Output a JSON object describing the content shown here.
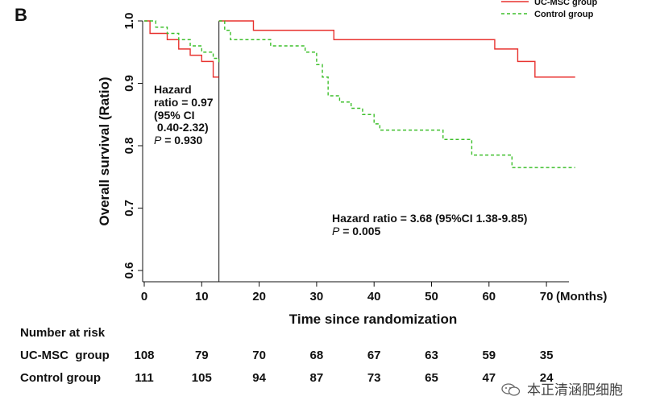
{
  "panel_label": "B",
  "chart_data": {
    "type": "line",
    "title": "",
    "xlabel": "Time since randomization",
    "ylabel": "Overall survival (Ratio)",
    "x_unit": "(Months)",
    "xlim": [
      0,
      75
    ],
    "ylim": [
      0.58,
      1.0
    ],
    "x_ticks": [
      0,
      10,
      20,
      30,
      40,
      50,
      60,
      70
    ],
    "x_tick_labels": [
      "0",
      "10",
      "20",
      "30",
      "40",
      "50",
      "60",
      "70"
    ],
    "y_ticks": [
      0.6,
      0.7,
      0.8,
      0.9,
      1.0
    ],
    "y_tick_labels": [
      "0.6",
      "0.7",
      "0.8",
      "0.9",
      "1.0"
    ],
    "cutoff_month": 13,
    "series": [
      {
        "name": "UC-MSC group",
        "color": "#e8322f",
        "style": "solid",
        "early": [
          [
            0,
            1.0
          ],
          [
            1,
            0.98
          ],
          [
            4,
            0.97
          ],
          [
            6,
            0.955
          ],
          [
            8,
            0.945
          ],
          [
            10,
            0.935
          ],
          [
            12,
            0.91
          ],
          [
            13,
            0.91
          ]
        ],
        "late": [
          [
            13,
            1.0
          ],
          [
            19,
            1.0
          ],
          [
            19,
            0.985
          ],
          [
            33,
            0.985
          ],
          [
            33,
            0.97
          ],
          [
            61,
            0.97
          ],
          [
            61,
            0.955
          ],
          [
            65,
            0.955
          ],
          [
            65,
            0.935
          ],
          [
            68,
            0.935
          ],
          [
            68,
            0.91
          ],
          [
            75,
            0.91
          ]
        ]
      },
      {
        "name": "Control group",
        "color": "#3cbf2a",
        "style": "dashed",
        "early": [
          [
            0,
            1.0
          ],
          [
            2,
            0.99
          ],
          [
            4,
            0.98
          ],
          [
            6,
            0.97
          ],
          [
            8,
            0.96
          ],
          [
            10,
            0.95
          ],
          [
            12,
            0.94
          ],
          [
            13,
            0.93
          ]
        ],
        "late": [
          [
            13,
            1.0
          ],
          [
            14,
            0.985
          ],
          [
            15,
            0.97
          ],
          [
            22,
            0.96
          ],
          [
            28,
            0.95
          ],
          [
            30,
            0.93
          ],
          [
            31,
            0.91
          ],
          [
            32,
            0.88
          ],
          [
            34,
            0.87
          ],
          [
            36,
            0.86
          ],
          [
            38,
            0.85
          ],
          [
            40,
            0.835
          ],
          [
            41,
            0.825
          ],
          [
            52,
            0.81
          ],
          [
            57,
            0.785
          ],
          [
            64,
            0.765
          ],
          [
            75,
            0.765
          ]
        ]
      }
    ],
    "annotations": {
      "early": {
        "lines": [
          "Hazard",
          "ratio = 0.97",
          "(95% CI",
          " 0.40-2.32)"
        ],
        "p_symbol": "P",
        "p_value": " = 0.930"
      },
      "late": {
        "line1": "Hazard ratio = 3.68 (95%CI 1.38-9.85)",
        "p_symbol": "P",
        "p_value": " = 0.005"
      }
    }
  },
  "risk_table": {
    "title": "Number at risk",
    "rows": [
      {
        "label": "UC-MSC  group",
        "values": [
          "108",
          "79",
          "70",
          "68",
          "67",
          "63",
          "59",
          "35"
        ]
      },
      {
        "label": "Control group",
        "values": [
          "111",
          "105",
          "94",
          "87",
          "73",
          "65",
          "47",
          "24"
        ]
      }
    ]
  },
  "watermark": "本正清涵肥细胞",
  "icon": "wechat-icon"
}
